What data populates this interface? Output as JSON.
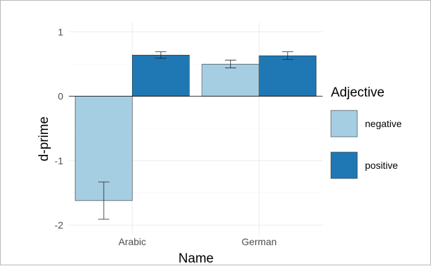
{
  "chart_data": {
    "type": "bar",
    "title": "",
    "xlabel": "Name",
    "ylabel": "d-prime",
    "categories": [
      "Arabic",
      "German"
    ],
    "ylim": [
      -2.15,
      1.15
    ],
    "yticks": [
      1,
      0,
      -1,
      -2
    ],
    "grid": true,
    "legend": {
      "title": "Adjective",
      "placement": "right"
    },
    "series": [
      {
        "name": "negative",
        "color": "#a6cee3",
        "values": [
          -1.62,
          0.5
        ],
        "error": [
          0.29,
          0.06
        ]
      },
      {
        "name": "positive",
        "color": "#1f78b4",
        "values": [
          0.64,
          0.63
        ],
        "error": [
          0.05,
          0.06
        ]
      }
    ]
  }
}
